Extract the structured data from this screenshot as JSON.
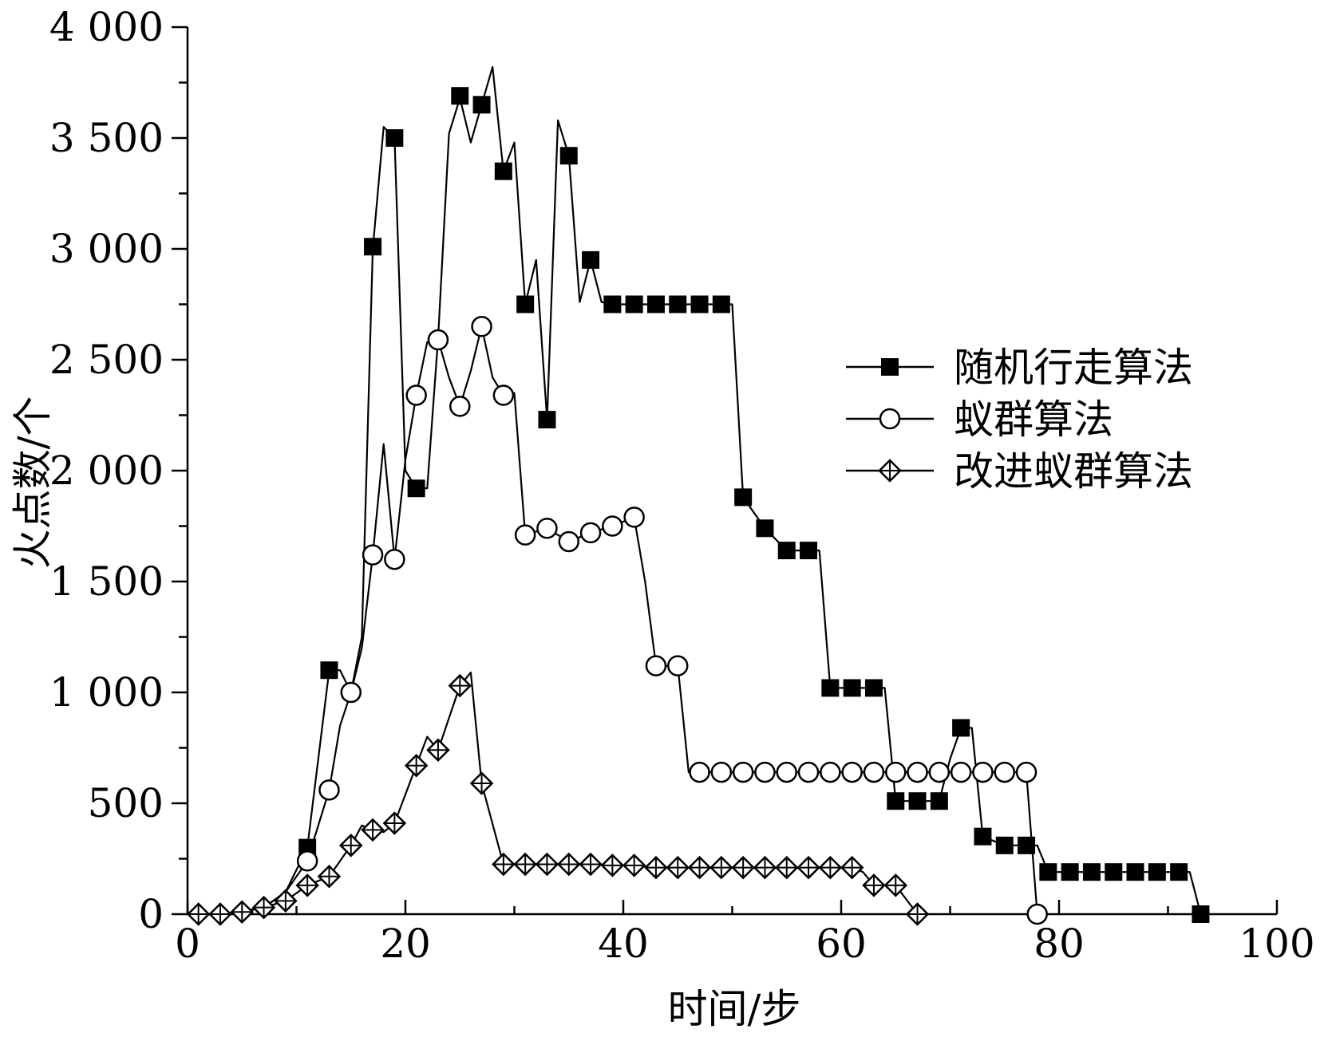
{
  "chart_data": {
    "type": "line",
    "title": "",
    "xlabel": "时间/步",
    "ylabel": "火点数/个",
    "xlim": [
      0,
      100
    ],
    "ylim": [
      0,
      4000
    ],
    "xticks": [
      0,
      20,
      40,
      60,
      80,
      100
    ],
    "xtick_labels": [
      "0",
      "20",
      "40",
      "60",
      "80",
      "100"
    ],
    "yticks": [
      0,
      500,
      1000,
      1500,
      2000,
      2500,
      3000,
      3500,
      4000
    ],
    "ytick_labels": [
      "0",
      "500",
      "1 000",
      "1 500",
      "2 000",
      "2 500",
      "3 000",
      "3 500",
      "4 000"
    ],
    "grid": false,
    "legend_position": "right",
    "series": [
      {
        "name": "随机行走算法",
        "marker": "filled-square",
        "line": [
          [
            1,
            0
          ],
          [
            3,
            0
          ],
          [
            5,
            15
          ],
          [
            7,
            30
          ],
          [
            9,
            100
          ],
          [
            11,
            300
          ],
          [
            13,
            1100
          ],
          [
            14,
            1100
          ],
          [
            15,
            1000
          ],
          [
            16,
            1250
          ],
          [
            17,
            3000
          ],
          [
            18,
            3550
          ],
          [
            19,
            3500
          ],
          [
            20,
            2000
          ],
          [
            21,
            1920
          ],
          [
            22,
            1920
          ],
          [
            23,
            2600
          ],
          [
            24,
            3520
          ],
          [
            25,
            3680
          ],
          [
            26,
            3480
          ],
          [
            27,
            3650
          ],
          [
            28,
            3820
          ],
          [
            29,
            3350
          ],
          [
            30,
            3480
          ],
          [
            31,
            2750
          ],
          [
            32,
            2950
          ],
          [
            33,
            2230
          ],
          [
            34,
            3580
          ],
          [
            35,
            3420
          ],
          [
            36,
            2760
          ],
          [
            37,
            2950
          ],
          [
            38,
            2760
          ],
          [
            39,
            2750
          ],
          [
            49,
            2750
          ],
          [
            50,
            2750
          ],
          [
            51,
            1880
          ],
          [
            53,
            1740
          ],
          [
            55,
            1640
          ],
          [
            57,
            1640
          ],
          [
            58,
            1640
          ],
          [
            59,
            1020
          ],
          [
            63,
            1020
          ],
          [
            64,
            1020
          ],
          [
            65,
            510
          ],
          [
            69,
            510
          ],
          [
            70,
            700
          ],
          [
            71,
            840
          ],
          [
            72,
            840
          ],
          [
            73,
            350
          ],
          [
            75,
            310
          ],
          [
            77,
            310
          ],
          [
            78,
            310
          ],
          [
            79,
            190
          ],
          [
            91,
            190
          ],
          [
            92,
            190
          ],
          [
            93,
            0
          ]
        ],
        "markers": [
          [
            11,
            300
          ],
          [
            13,
            1100
          ],
          [
            17,
            3010
          ],
          [
            19,
            3500
          ],
          [
            21,
            1920
          ],
          [
            25,
            3690
          ],
          [
            27,
            3650
          ],
          [
            29,
            3350
          ],
          [
            31,
            2750
          ],
          [
            33,
            2230
          ],
          [
            35,
            3420
          ],
          [
            37,
            2950
          ],
          [
            39,
            2750
          ],
          [
            41,
            2750
          ],
          [
            43,
            2750
          ],
          [
            45,
            2750
          ],
          [
            47,
            2750
          ],
          [
            49,
            2750
          ],
          [
            51,
            1880
          ],
          [
            53,
            1740
          ],
          [
            55,
            1640
          ],
          [
            57,
            1640
          ],
          [
            59,
            1020
          ],
          [
            61,
            1020
          ],
          [
            63,
            1020
          ],
          [
            65,
            510
          ],
          [
            67,
            510
          ],
          [
            69,
            510
          ],
          [
            71,
            840
          ],
          [
            73,
            350
          ],
          [
            75,
            310
          ],
          [
            77,
            310
          ],
          [
            79,
            190
          ],
          [
            81,
            190
          ],
          [
            83,
            190
          ],
          [
            85,
            190
          ],
          [
            87,
            190
          ],
          [
            89,
            190
          ],
          [
            91,
            190
          ],
          [
            93,
            0
          ]
        ]
      },
      {
        "name": "蚁群算法",
        "marker": "open-circle",
        "line": [
          [
            1,
            0
          ],
          [
            3,
            0
          ],
          [
            5,
            10
          ],
          [
            7,
            30
          ],
          [
            9,
            100
          ],
          [
            11,
            240
          ],
          [
            12,
            400
          ],
          [
            13,
            560
          ],
          [
            14,
            850
          ],
          [
            15,
            1000
          ],
          [
            16,
            1200
          ],
          [
            17,
            1620
          ],
          [
            18,
            2120
          ],
          [
            19,
            1600
          ],
          [
            20,
            2050
          ],
          [
            21,
            2340
          ],
          [
            22,
            2580
          ],
          [
            23,
            2590
          ],
          [
            24,
            2420
          ],
          [
            25,
            2290
          ],
          [
            26,
            2450
          ],
          [
            27,
            2650
          ],
          [
            28,
            2420
          ],
          [
            29,
            2340
          ],
          [
            30,
            2350
          ],
          [
            31,
            1710
          ],
          [
            33,
            1740
          ],
          [
            35,
            1680
          ],
          [
            37,
            1720
          ],
          [
            39,
            1750
          ],
          [
            41,
            1790
          ],
          [
            42,
            1500
          ],
          [
            43,
            1120
          ],
          [
            45,
            1120
          ],
          [
            46,
            640
          ],
          [
            47,
            640
          ],
          [
            77,
            640
          ],
          [
            78,
            0
          ]
        ],
        "markers": [
          [
            11,
            240
          ],
          [
            13,
            560
          ],
          [
            15,
            1000
          ],
          [
            17,
            1620
          ],
          [
            19,
            1600
          ],
          [
            21,
            2340
          ],
          [
            23,
            2590
          ],
          [
            25,
            2290
          ],
          [
            27,
            2650
          ],
          [
            29,
            2340
          ],
          [
            31,
            1710
          ],
          [
            33,
            1740
          ],
          [
            35,
            1680
          ],
          [
            37,
            1720
          ],
          [
            39,
            1750
          ],
          [
            41,
            1790
          ],
          [
            43,
            1120
          ],
          [
            45,
            1120
          ],
          [
            47,
            640
          ],
          [
            49,
            640
          ],
          [
            51,
            640
          ],
          [
            53,
            640
          ],
          [
            55,
            640
          ],
          [
            57,
            640
          ],
          [
            59,
            640
          ],
          [
            61,
            640
          ],
          [
            63,
            640
          ],
          [
            65,
            640
          ],
          [
            67,
            640
          ],
          [
            69,
            640
          ],
          [
            71,
            640
          ],
          [
            73,
            640
          ],
          [
            75,
            640
          ],
          [
            77,
            640
          ],
          [
            78,
            0
          ]
        ]
      },
      {
        "name": "改进蚁群算法",
        "marker": "crossed-diamond",
        "line": [
          [
            1,
            0
          ],
          [
            3,
            0
          ],
          [
            5,
            10
          ],
          [
            7,
            30
          ],
          [
            9,
            60
          ],
          [
            11,
            130
          ],
          [
            13,
            170
          ],
          [
            15,
            310
          ],
          [
            16,
            400
          ],
          [
            17,
            380
          ],
          [
            18,
            370
          ],
          [
            19,
            410
          ],
          [
            21,
            670
          ],
          [
            22,
            800
          ],
          [
            23,
            740
          ],
          [
            25,
            1030
          ],
          [
            26,
            1090
          ],
          [
            27,
            590
          ],
          [
            29,
            225
          ],
          [
            31,
            225
          ],
          [
            33,
            225
          ],
          [
            35,
            225
          ],
          [
            37,
            225
          ],
          [
            39,
            220
          ],
          [
            41,
            220
          ],
          [
            43,
            210
          ],
          [
            61,
            210
          ],
          [
            62,
            190
          ],
          [
            63,
            130
          ],
          [
            65,
            130
          ],
          [
            67,
            0
          ]
        ],
        "markers": [
          [
            1,
            0
          ],
          [
            3,
            0
          ],
          [
            5,
            10
          ],
          [
            7,
            30
          ],
          [
            9,
            60
          ],
          [
            11,
            130
          ],
          [
            13,
            170
          ],
          [
            15,
            310
          ],
          [
            17,
            380
          ],
          [
            19,
            410
          ],
          [
            21,
            670
          ],
          [
            23,
            740
          ],
          [
            25,
            1030
          ],
          [
            27,
            590
          ],
          [
            29,
            225
          ],
          [
            31,
            225
          ],
          [
            33,
            225
          ],
          [
            35,
            225
          ],
          [
            37,
            225
          ],
          [
            39,
            220
          ],
          [
            41,
            220
          ],
          [
            43,
            210
          ],
          [
            45,
            210
          ],
          [
            47,
            210
          ],
          [
            49,
            210
          ],
          [
            51,
            210
          ],
          [
            53,
            210
          ],
          [
            55,
            210
          ],
          [
            57,
            210
          ],
          [
            59,
            210
          ],
          [
            61,
            210
          ],
          [
            63,
            130
          ],
          [
            65,
            130
          ],
          [
            67,
            0
          ]
        ]
      }
    ]
  }
}
